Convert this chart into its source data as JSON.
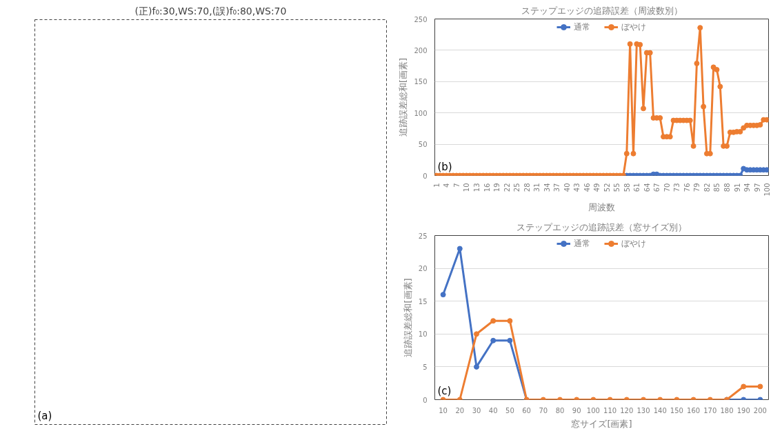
{
  "chart_data": [
    {
      "type": "other",
      "title": "(正)f₀:30,WS:70,(誤)f₀:80,WS:70",
      "annotations": [
        "(a)"
      ]
    },
    {
      "type": "line",
      "title": "ステップエッジの追跡誤差（周波数別）",
      "xlabel": "周波数",
      "ylabel": "追跡誤差総和[画素]",
      "annotations": [
        "(b)"
      ],
      "categories": [
        "1",
        null,
        null,
        "4",
        null,
        null,
        "7",
        null,
        null,
        "10",
        null,
        null,
        "13",
        null,
        null,
        "16",
        null,
        null,
        "19",
        null,
        null,
        "22",
        null,
        null,
        "25",
        null,
        null,
        "28",
        null,
        null,
        "31",
        null,
        null,
        "34",
        null,
        null,
        "37",
        null,
        null,
        "40",
        null,
        null,
        "43",
        null,
        null,
        "46",
        null,
        null,
        "49",
        null,
        null,
        "52",
        null,
        null,
        "55",
        null,
        null,
        "58",
        null,
        null,
        "61",
        null,
        null,
        "64",
        null,
        null,
        "67",
        null,
        null,
        "70",
        null,
        null,
        "73",
        null,
        null,
        "76",
        null,
        null,
        "79",
        null,
        null,
        "82",
        null,
        null,
        "85",
        null,
        null,
        "88",
        null,
        null,
        "91",
        null,
        null,
        "94",
        null,
        null,
        "97",
        null,
        null,
        "100"
      ],
      "series": [
        {
          "name": "通常",
          "color": "#4472c4",
          "values": [
            null,
            null,
            null,
            null,
            null,
            null,
            null,
            null,
            null,
            null,
            null,
            null,
            null,
            null,
            null,
            null,
            null,
            null,
            null,
            null,
            null,
            null,
            null,
            null,
            null,
            null,
            null,
            null,
            null,
            null,
            null,
            null,
            null,
            null,
            null,
            null,
            null,
            null,
            null,
            null,
            null,
            null,
            null,
            null,
            null,
            null,
            null,
            null,
            null,
            null,
            null,
            null,
            null,
            null,
            null,
            null,
            null,
            0,
            0,
            0,
            0,
            0,
            0,
            0,
            0,
            2,
            2,
            0,
            0,
            0,
            0,
            0,
            0,
            0,
            0,
            0,
            0,
            0,
            0,
            0,
            0,
            0,
            0,
            0,
            0,
            0,
            0,
            0,
            0,
            0,
            0,
            0,
            11,
            9,
            9,
            9,
            9,
            9,
            9,
            9
          ]
        },
        {
          "name": "ぼやけ",
          "color": "#ed7d31",
          "values": [
            0,
            0,
            0,
            0,
            0,
            0,
            0,
            0,
            0,
            0,
            0,
            0,
            0,
            0,
            0,
            0,
            0,
            0,
            0,
            0,
            0,
            0,
            0,
            0,
            0,
            0,
            0,
            0,
            0,
            0,
            0,
            0,
            0,
            0,
            0,
            0,
            0,
            0,
            0,
            0,
            0,
            0,
            0,
            0,
            0,
            0,
            0,
            0,
            0,
            0,
            0,
            0,
            0,
            0,
            0,
            0,
            0,
            35,
            210,
            35,
            210,
            209,
            107,
            196,
            196,
            92,
            92,
            92,
            62,
            62,
            62,
            88,
            88,
            88,
            88,
            88,
            88,
            47,
            179,
            236,
            110,
            35,
            35,
            173,
            169,
            142,
            47,
            47,
            69,
            69,
            70,
            70,
            76,
            80,
            80,
            80,
            80,
            81,
            89,
            89
          ]
        }
      ],
      "ylim": [
        0,
        250
      ],
      "yticks": [
        0,
        50,
        100,
        150,
        200,
        250
      ],
      "grid": "y",
      "legend": "top",
      "marker": "circle",
      "line_style": "solid"
    },
    {
      "type": "line",
      "title": "ステップエッジの追跡誤差（窓サイズ別）",
      "xlabel": "窓サイズ[画素]",
      "ylabel": "追跡誤差総和[画素]",
      "annotations": [
        "(c)"
      ],
      "categories": [
        "10",
        "20",
        "30",
        "40",
        "50",
        "60",
        "70",
        "80",
        "90",
        "100",
        "110",
        "120",
        "130",
        "140",
        "150",
        "160",
        "170",
        "180",
        "190",
        "200"
      ],
      "series": [
        {
          "name": "通常",
          "color": "#4472c4",
          "values": [
            16,
            23,
            5,
            9,
            9,
            0,
            null,
            null,
            null,
            null,
            null,
            null,
            null,
            null,
            null,
            null,
            null,
            0,
            0,
            0
          ]
        },
        {
          "name": "ぼやけ",
          "color": "#ed7d31",
          "values": [
            0,
            0,
            10,
            12,
            12,
            0,
            0,
            0,
            0,
            0,
            0,
            0,
            0,
            0,
            0,
            0,
            0,
            0,
            2,
            2
          ]
        }
      ],
      "ylim": [
        0,
        25
      ],
      "yticks": [
        0,
        5,
        10,
        15,
        20,
        25
      ],
      "grid": "y",
      "legend": "top",
      "marker": "circle",
      "line_style": "solid"
    }
  ]
}
